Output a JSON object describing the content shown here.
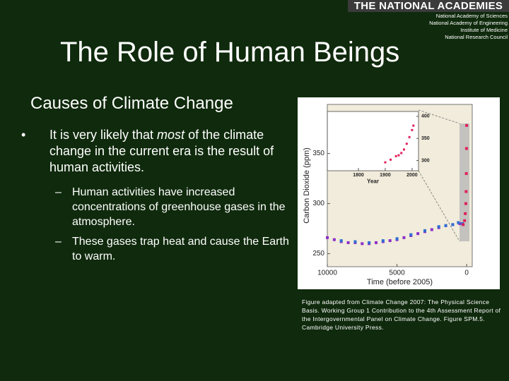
{
  "header": {
    "logo": "THE NATIONAL ACADEMIES",
    "members": [
      "National Academy of Sciences",
      "National Academy of Engineering",
      "Institute of Medicine",
      "National Research Council"
    ]
  },
  "title": "The Role of Human Beings",
  "subtitle": "Causes of Climate Change",
  "bullet": {
    "marker": "•",
    "text_before": "It is very likely that ",
    "emphasis": "most",
    "text_after": " of the climate change in the current era is the result of human activities."
  },
  "sub_bullets": [
    {
      "marker": "–",
      "text": "Human activities have increased concentrations of greenhouse gases in the atmosphere."
    },
    {
      "marker": "–",
      "text": "These gases trap heat and cause the Earth to warm."
    }
  ],
  "caption": "Figure adapted from Climate Change 2007: The Physical Science Basis. Working Group 1 Contribution to the 4th Assessment Report of the Intergovernmental Panel on Climate Change. Figure SPM.5. Cambridge University Press.",
  "chart_data": [
    {
      "type": "scatter",
      "x_label": "Time (before 2005)",
      "y_label": "Carbon Dioxide (ppm)",
      "xlim": [
        10000,
        -400
      ],
      "ylim": [
        237,
        399
      ],
      "xticks": [
        10000,
        5000,
        0
      ],
      "yticks": [
        250,
        300,
        350
      ],
      "series": [
        {
          "color": "#8b2fc9",
          "x": [
            10000,
            9500,
            9000,
            8500,
            8000,
            7500,
            7000,
            6500,
            6000,
            5500,
            5000,
            4500,
            4000,
            3500,
            3000,
            2500,
            2000,
            1500,
            1000,
            500
          ],
          "values": [
            266,
            264,
            262,
            261,
            261,
            260,
            260,
            261,
            262,
            263,
            264,
            266,
            268,
            270,
            272,
            274,
            276,
            278,
            279,
            280
          ]
        },
        {
          "color": "#2f6fd0",
          "x": [
            9000,
            8000,
            7000,
            6000,
            5000,
            4000,
            3000,
            2000,
            1500,
            1000,
            600,
            300
          ],
          "values": [
            263,
            262,
            261,
            263,
            265,
            269,
            273,
            277,
            278,
            279,
            281,
            280
          ]
        },
        {
          "color": "#e0205a",
          "x": [
            250,
            150,
            100,
            60,
            40,
            25,
            10,
            0
          ],
          "values": [
            279,
            283,
            290,
            300,
            312,
            330,
            355,
            378
          ]
        }
      ]
    },
    {
      "type": "scatter",
      "x_label": "Year",
      "xlim": [
        1684,
        2024
      ],
      "ylim": [
        277,
        411
      ],
      "xticks": [
        1800,
        1900,
        2000
      ],
      "yticks": [
        300,
        350,
        400
      ],
      "series": [
        {
          "color": "#e0205a",
          "x": [
            1900,
            1920,
            1940,
            1950,
            1960,
            1970,
            1980,
            1990,
            2000,
            2005
          ],
          "values": [
            296,
            302,
            310,
            312,
            317,
            325,
            338,
            353,
            369,
            379
          ]
        }
      ]
    }
  ]
}
